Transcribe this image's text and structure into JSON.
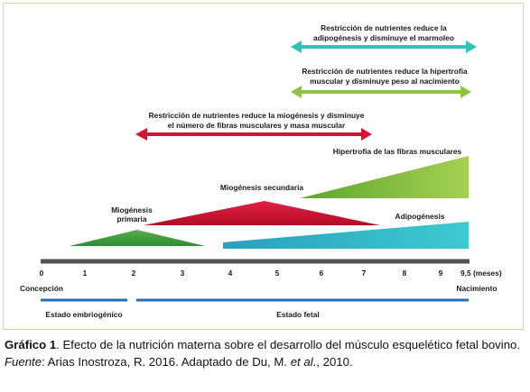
{
  "diagram": {
    "arrows": [
      {
        "id": "adipogenesis",
        "color": "#2ec4b8",
        "line1": "Restricción de nutrientes reduce la",
        "line2": "adipogénesis y disminuye el marmoleo"
      },
      {
        "id": "hypertrophy",
        "color": "#8cc63f",
        "line1": "Restricción de nutrientes reduce la hipertrofia",
        "line2": "muscular  y disminuye peso al nacimiento"
      },
      {
        "id": "myogenesis",
        "color": "#d2143a",
        "line1": "Restricción de nutrientes reduce la miogénesis y disminuye",
        "line2": "el número de fibras musculares y masa muscular"
      }
    ],
    "shapes": {
      "hypertrophy_label": "Hipertrofia de las fibras musculares",
      "secondary_label": "Miogénesis secundaria",
      "primary_label_1": "Miogénesis",
      "primary_label_2": "primaria",
      "adipogenesis_label": "Adipogénesis",
      "colors": {
        "primary": "#3f9a3a",
        "secondary": "#c8102e",
        "hypertrophy": "#8cc63f",
        "adipogenesis": "#2bb5c6"
      }
    },
    "axis": {
      "ticks": [
        "0",
        "1",
        "2",
        "3",
        "4",
        "5",
        "6",
        "7",
        "8",
        "9",
        "9,5 (meses)"
      ],
      "start_label": "Concepción",
      "end_label": "Nacimiento"
    },
    "stages": {
      "embryonic": "Estado embriogénico",
      "fetal": "Estado fetal",
      "color": "#1e6fb7"
    }
  },
  "caption": {
    "figure_label": "Gráfico 1",
    "text": ". Efecto de la nutrición materna sobre el desarrollo del músculo esquelético fetal bovino.",
    "source_label": "Fuente",
    "source_text_1": ": Arias Inostroza,  R. 2016. Adaptado de Du, M. ",
    "source_etal": "et al",
    "source_text_2": "., 2010."
  }
}
